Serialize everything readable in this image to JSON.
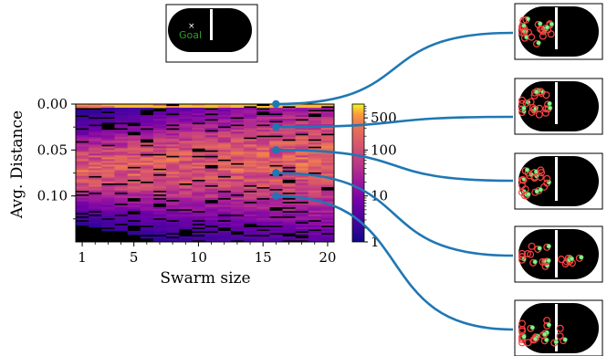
{
  "chart_data": {
    "type": "heatmap",
    "xlabel": "Swarm size",
    "ylabel": "Avg. Distance",
    "x_range": [
      0.5,
      20.5
    ],
    "y_range": [
      0.0,
      0.15
    ],
    "y_inverted": true,
    "x_ticks": [
      {
        "value": 1,
        "label": "1"
      },
      {
        "value": 5,
        "label": "5"
      },
      {
        "value": 10,
        "label": "10"
      },
      {
        "value": 15,
        "label": "15"
      },
      {
        "value": 20,
        "label": "20"
      }
    ],
    "y_ticks": [
      {
        "value": 0.0,
        "label": "0.00"
      },
      {
        "value": 0.05,
        "label": "0.05"
      },
      {
        "value": 0.1,
        "label": "0.10"
      }
    ],
    "y_minor_ticks": [
      0.025,
      0.075,
      0.125
    ],
    "colorbar": {
      "scale": "log",
      "colormap": "plasma",
      "range": [
        1,
        1000
      ],
      "ticks": [
        {
          "value": 1,
          "label": "1"
        },
        {
          "value": 10,
          "label": "10"
        },
        {
          "value": 100,
          "label": "100"
        },
        {
          "value": 500,
          "label": "500"
        }
      ]
    },
    "grid": false,
    "highlighted_points": [
      {
        "x": 16,
        "y": 0.0
      },
      {
        "x": 16,
        "y": 0.025
      },
      {
        "x": 16,
        "y": 0.05
      },
      {
        "x": 16,
        "y": 0.075
      },
      {
        "x": 16,
        "y": 0.1
      }
    ]
  },
  "inset": {
    "goal_label": "Goal",
    "goal_marker": "×"
  },
  "colors": {
    "connector": "#1f77b4",
    "goal": "#2ca02c",
    "robot_fill": "#90ee90",
    "robot_outline": "#2ca02c",
    "trail": "#ff4040"
  }
}
